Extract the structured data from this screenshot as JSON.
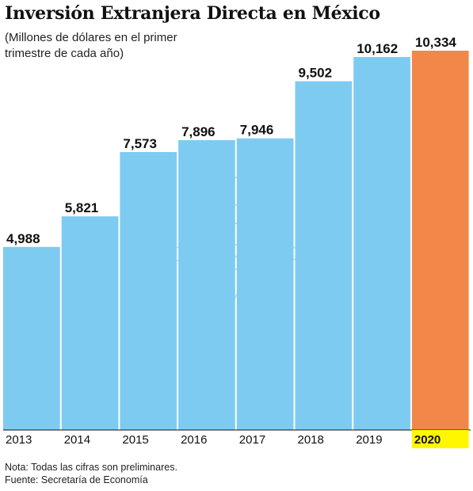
{
  "title": "Inversión Extranjera Directa en México",
  "subtitle": "(Millones de dólares en el primer trimestre de cada año)",
  "notes": {
    "note": "Nota: Todas las cifras son preliminares.",
    "source": "Fuente: Secretaría de Economía"
  },
  "colors": {
    "bar": "#7ecbf2",
    "highlight_bar": "#f2874a",
    "highlight_tick_bg": "#fff700",
    "watermark": "#5fa8d8"
  },
  "chart_data": {
    "type": "bar",
    "categories": [
      "2013",
      "2014",
      "2015",
      "2016",
      "2017",
      "2018",
      "2019",
      "2020"
    ],
    "values": [
      4988,
      5821,
      7573,
      7896,
      7946,
      9502,
      10162,
      10334
    ],
    "value_labels": [
      "4,988",
      "5,821",
      "7,573",
      "7,896",
      "7,946",
      "9,502",
      "10,162",
      "10,334"
    ],
    "highlight_category": "2020",
    "ylim": [
      0,
      10334
    ],
    "xlabel": "",
    "ylabel": "",
    "grid": false,
    "legend": "none"
  }
}
